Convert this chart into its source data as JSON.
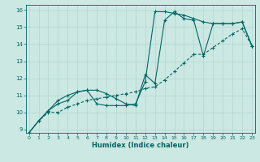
{
  "xlabel": "Humidex (Indice chaleur)",
  "bg_color": "#cce8e2",
  "line_color": "#006666",
  "grid_color": "#b0d8d0",
  "xmin": 0,
  "xmax": 23,
  "ymin": 9,
  "ymax": 16,
  "line1_x": [
    0,
    1,
    2,
    3,
    4,
    5,
    6,
    7,
    8,
    9,
    10,
    11,
    12,
    13,
    14,
    15,
    16,
    17,
    18,
    19,
    20,
    21,
    22,
    23
  ],
  "line1_y": [
    8.8,
    9.5,
    10.1,
    10.5,
    10.7,
    11.2,
    11.3,
    10.5,
    10.4,
    10.4,
    10.4,
    10.5,
    11.8,
    15.9,
    15.9,
    15.8,
    15.7,
    15.5,
    15.3,
    15.2,
    15.2,
    15.2,
    15.3,
    13.9
  ],
  "line2_x": [
    0,
    1,
    2,
    3,
    4,
    5,
    6,
    7,
    8,
    9,
    10,
    11,
    12,
    13,
    14,
    15,
    16,
    17,
    18,
    19,
    20,
    21,
    22,
    23
  ],
  "line2_y": [
    8.8,
    9.5,
    10.1,
    10.7,
    11.0,
    11.2,
    11.3,
    11.3,
    11.1,
    10.8,
    10.5,
    10.4,
    12.2,
    11.7,
    15.4,
    15.9,
    15.5,
    15.4,
    13.3,
    15.2,
    15.2,
    15.2,
    15.3,
    13.9
  ],
  "line3_x": [
    0,
    1,
    2,
    3,
    4,
    5,
    6,
    7,
    8,
    9,
    10,
    11,
    12,
    13,
    14,
    15,
    16,
    17,
    18,
    19,
    20,
    21,
    22,
    23
  ],
  "line3_y": [
    8.8,
    9.5,
    10.0,
    10.0,
    10.3,
    10.5,
    10.7,
    10.8,
    10.9,
    11.0,
    11.1,
    11.2,
    11.4,
    11.5,
    11.9,
    12.4,
    12.9,
    13.4,
    13.4,
    13.8,
    14.2,
    14.6,
    14.9,
    13.9
  ]
}
